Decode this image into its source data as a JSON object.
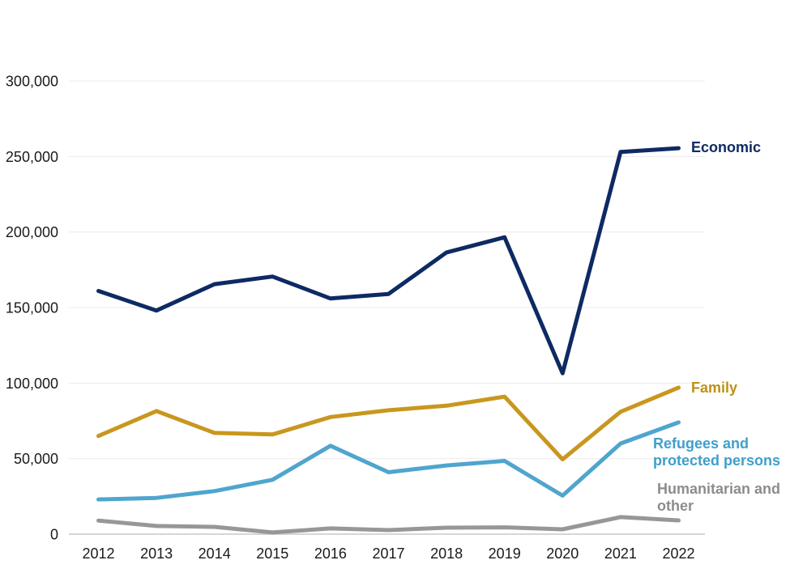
{
  "page": {
    "background": "#ffffff",
    "tick_label_color": "#1a1a1a",
    "grid_color": "#ebebeb",
    "axis_color": "#d6d6d6"
  },
  "chart_data": {
    "type": "line",
    "title": "",
    "xlabel": "",
    "ylabel": "",
    "grid": "horizontal-only",
    "legend_position": "right-end-of-line",
    "ylim": [
      0,
      300000
    ],
    "ytick_step": 50000,
    "ytick_labels": [
      "0",
      "50,000",
      "100,000",
      "150,000",
      "200,000",
      "250,000",
      "300,000"
    ],
    "x": [
      2012,
      2013,
      2014,
      2015,
      2016,
      2017,
      2018,
      2019,
      2020,
      2021,
      2022
    ],
    "xtick_labels": [
      "2012",
      "2013",
      "2014",
      "2015",
      "2016",
      "2017",
      "2018",
      "2019",
      "2020",
      "2021",
      "2022"
    ],
    "series": [
      {
        "key": "economic",
        "name": "Economic",
        "label": "Economic",
        "color": "#0e2a64",
        "label_color": "#0e2a64",
        "values": [
          161000,
          148000,
          165500,
          170500,
          156000,
          159000,
          186500,
          196500,
          106500,
          253000,
          255500
        ]
      },
      {
        "key": "family",
        "name": "Family",
        "label": "Family",
        "color": "#c9971f",
        "label_color": "#bd9116",
        "values": [
          65000,
          81500,
          67000,
          66000,
          77500,
          82000,
          85000,
          91000,
          49500,
          81000,
          97000
        ]
      },
      {
        "key": "refugees",
        "name": "Refugees and protected persons",
        "label": "Refugees and\nprotected persons",
        "color": "#4fa5ce",
        "label_color": "#3f9fca",
        "values": [
          23000,
          24000,
          28500,
          36000,
          58500,
          41000,
          45500,
          48500,
          25500,
          60000,
          74000
        ]
      },
      {
        "key": "humanitarian",
        "name": "Humanitarian and other",
        "label": "Humanitarian and\nother",
        "color": "#979797",
        "label_color": "#8c8c8c",
        "values": [
          9000,
          5400,
          4800,
          1100,
          3800,
          2700,
          4300,
          4500,
          3200,
          11300,
          9100
        ]
      }
    ]
  }
}
